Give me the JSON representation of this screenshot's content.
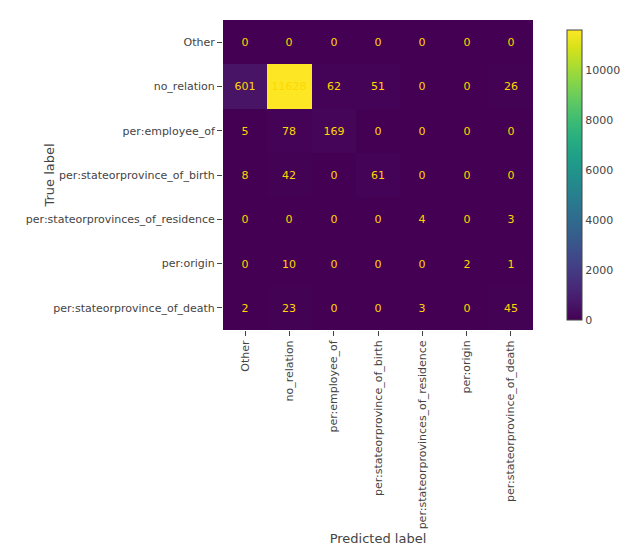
{
  "chart_data": {
    "type": "heatmap",
    "categories": [
      "Other",
      "no_relation",
      "per:employee_of",
      "per:stateorprovince_of_birth",
      "per:stateorprovinces_of_residence",
      "per:origin",
      "per:stateorprovince_of_death"
    ],
    "matrix": [
      [
        0,
        0,
        0,
        0,
        0,
        0,
        0
      ],
      [
        601,
        11628,
        62,
        51,
        0,
        0,
        26
      ],
      [
        5,
        78,
        169,
        0,
        0,
        0,
        0
      ],
      [
        8,
        42,
        0,
        61,
        0,
        0,
        0
      ],
      [
        0,
        0,
        0,
        0,
        4,
        0,
        3
      ],
      [
        0,
        10,
        0,
        0,
        0,
        2,
        1
      ],
      [
        2,
        23,
        0,
        0,
        3,
        0,
        45
      ]
    ],
    "xlabel": "Predicted label",
    "ylabel": "True label",
    "colorbar_range": [
      0,
      11628
    ],
    "colorbar_ticks": [
      0,
      2000,
      4000,
      6000,
      8000,
      10000
    ],
    "data_labels": true,
    "color": "#ffd700",
    "grid": false
  }
}
